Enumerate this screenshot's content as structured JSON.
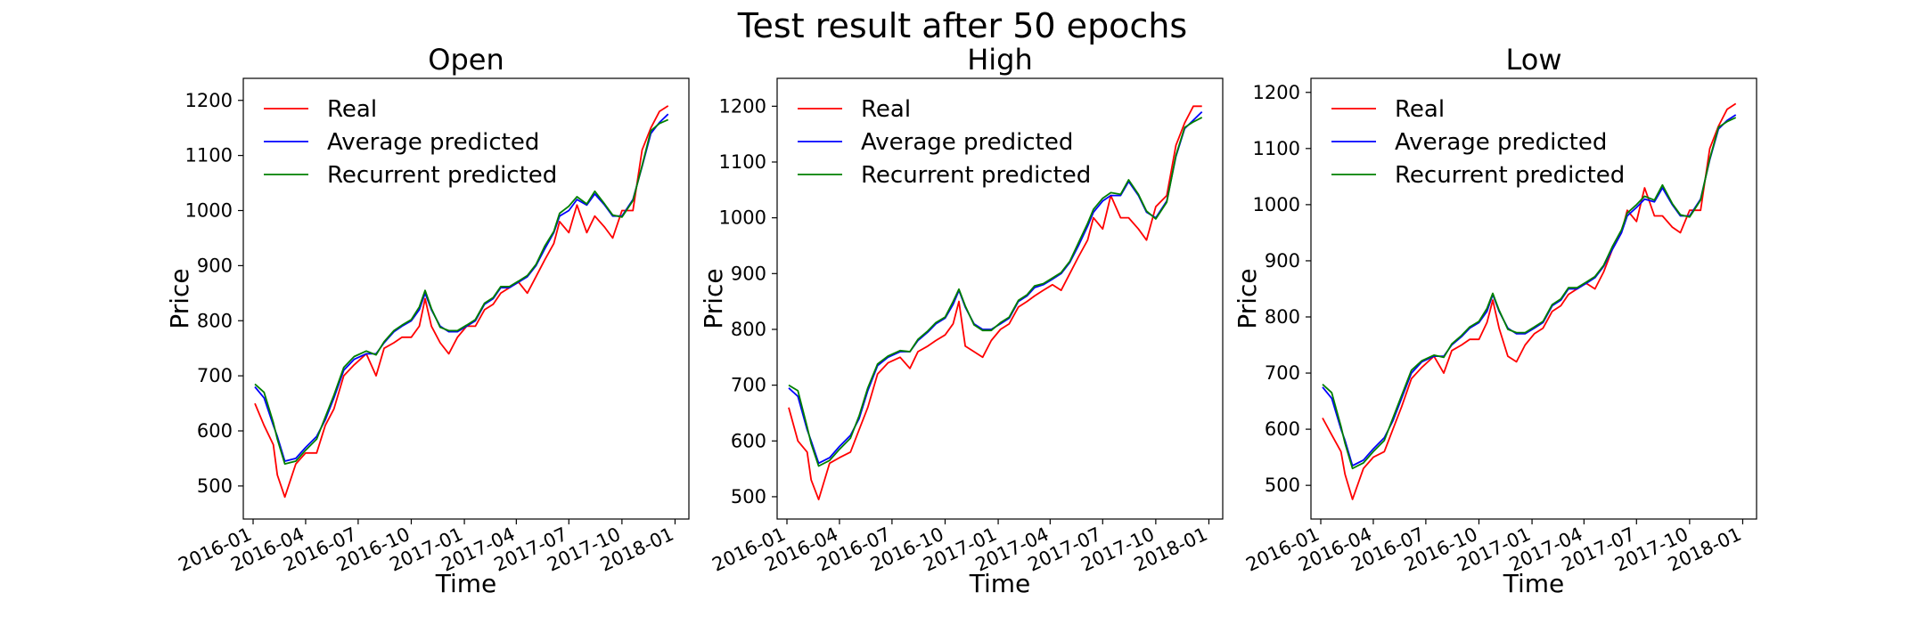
{
  "title": "Test result after 50 epochs",
  "legend": [
    {
      "label": "Real",
      "color": "#ff0000"
    },
    {
      "label": "Average predicted",
      "color": "#0000ff"
    },
    {
      "label": "Recurrent predicted",
      "color": "#008000"
    }
  ],
  "chart_data": [
    {
      "type": "line",
      "title": "Open",
      "xlabel": "Time",
      "ylabel": "Price",
      "x_ticks": [
        "2016-01",
        "2016-04",
        "2016-07",
        "2016-10",
        "2017-01",
        "2017-04",
        "2017-07",
        "2017-10",
        "2018-01"
      ],
      "y_ticks": [
        500,
        600,
        700,
        800,
        900,
        1000,
        1100,
        1200
      ],
      "ylim": [
        440,
        1240
      ],
      "grid": false,
      "legend_position": "top-left",
      "x": [
        "2016-01-04",
        "2016-01-20",
        "2016-02-05",
        "2016-02-12",
        "2016-02-25",
        "2016-03-15",
        "2016-04-01",
        "2016-04-20",
        "2016-05-05",
        "2016-05-20",
        "2016-06-06",
        "2016-06-24",
        "2016-07-15",
        "2016-08-01",
        "2016-08-15",
        "2016-09-01",
        "2016-09-15",
        "2016-10-01",
        "2016-10-15",
        "2016-10-25",
        "2016-11-05",
        "2016-11-20",
        "2016-12-05",
        "2016-12-20",
        "2017-01-05",
        "2017-01-20",
        "2017-02-05",
        "2017-02-20",
        "2017-03-05",
        "2017-03-20",
        "2017-04-05",
        "2017-04-20",
        "2017-05-05",
        "2017-05-20",
        "2017-06-05",
        "2017-06-15",
        "2017-07-01",
        "2017-07-15",
        "2017-08-01",
        "2017-08-15",
        "2017-09-01",
        "2017-09-15",
        "2017-10-01",
        "2017-10-20",
        "2017-11-05",
        "2017-11-20",
        "2017-12-05",
        "2017-12-20"
      ],
      "series": [
        {
          "name": "Real",
          "color": "#ff0000",
          "values": [
            650,
            610,
            575,
            520,
            480,
            540,
            560,
            560,
            610,
            640,
            700,
            720,
            740,
            700,
            750,
            760,
            770,
            770,
            790,
            840,
            790,
            760,
            740,
            770,
            790,
            790,
            820,
            830,
            850,
            860,
            870,
            850,
            880,
            910,
            940,
            980,
            960,
            1010,
            960,
            990,
            970,
            950,
            1000,
            1000,
            1110,
            1150,
            1180,
            1190
          ]
        },
        {
          "name": "Average predicted",
          "color": "#0000ff",
          "values": [
            680,
            660,
            610,
            590,
            545,
            550,
            570,
            590,
            620,
            660,
            710,
            730,
            740,
            740,
            760,
            780,
            790,
            800,
            820,
            850,
            820,
            790,
            780,
            780,
            790,
            800,
            830,
            840,
            860,
            860,
            870,
            880,
            900,
            930,
            960,
            990,
            1000,
            1020,
            1010,
            1030,
            1010,
            990,
            990,
            1020,
            1080,
            1140,
            1160,
            1175
          ]
        },
        {
          "name": "Recurrent predicted",
          "color": "#008000",
          "values": [
            685,
            670,
            615,
            585,
            540,
            545,
            565,
            585,
            625,
            665,
            715,
            735,
            745,
            738,
            762,
            782,
            792,
            802,
            825,
            855,
            822,
            788,
            782,
            782,
            792,
            802,
            832,
            842,
            862,
            862,
            872,
            882,
            902,
            935,
            962,
            995,
            1008,
            1025,
            1012,
            1035,
            1012,
            992,
            988,
            1018,
            1082,
            1145,
            1158,
            1165
          ]
        }
      ]
    },
    {
      "type": "line",
      "title": "High",
      "xlabel": "Time",
      "ylabel": "Price",
      "x_ticks": [
        "2016-01",
        "2016-04",
        "2016-07",
        "2016-10",
        "2017-01",
        "2017-04",
        "2017-07",
        "2017-10",
        "2018-01"
      ],
      "y_ticks": [
        500,
        600,
        700,
        800,
        900,
        1000,
        1100,
        1200
      ],
      "ylim": [
        460,
        1250
      ],
      "grid": false,
      "legend_position": "top-left",
      "x": [
        "2016-01-04",
        "2016-01-20",
        "2016-02-05",
        "2016-02-12",
        "2016-02-25",
        "2016-03-15",
        "2016-04-01",
        "2016-04-20",
        "2016-05-05",
        "2016-05-20",
        "2016-06-06",
        "2016-06-24",
        "2016-07-15",
        "2016-08-01",
        "2016-08-15",
        "2016-09-01",
        "2016-09-15",
        "2016-10-01",
        "2016-10-15",
        "2016-10-25",
        "2016-11-05",
        "2016-11-20",
        "2016-12-05",
        "2016-12-20",
        "2017-01-05",
        "2017-01-20",
        "2017-02-05",
        "2017-02-20",
        "2017-03-05",
        "2017-03-20",
        "2017-04-05",
        "2017-04-20",
        "2017-05-05",
        "2017-05-20",
        "2017-06-05",
        "2017-06-15",
        "2017-07-01",
        "2017-07-15",
        "2017-08-01",
        "2017-08-15",
        "2017-09-01",
        "2017-09-15",
        "2017-10-01",
        "2017-10-20",
        "2017-11-05",
        "2017-11-20",
        "2017-12-05",
        "2017-12-20"
      ],
      "series": [
        {
          "name": "Real",
          "color": "#ff0000",
          "values": [
            660,
            600,
            580,
            530,
            495,
            560,
            570,
            580,
            620,
            660,
            720,
            740,
            750,
            730,
            760,
            770,
            780,
            790,
            810,
            850,
            770,
            760,
            750,
            780,
            800,
            810,
            840,
            850,
            860,
            870,
            880,
            870,
            900,
            930,
            960,
            1000,
            980,
            1040,
            1000,
            1000,
            980,
            960,
            1020,
            1040,
            1130,
            1170,
            1200,
            1200
          ]
        },
        {
          "name": "Average predicted",
          "color": "#0000ff",
          "values": [
            695,
            680,
            620,
            600,
            560,
            570,
            590,
            610,
            640,
            690,
            735,
            750,
            760,
            760,
            780,
            795,
            810,
            820,
            845,
            870,
            840,
            810,
            800,
            800,
            810,
            820,
            850,
            860,
            875,
            880,
            890,
            900,
            920,
            950,
            985,
            1010,
            1030,
            1040,
            1040,
            1065,
            1040,
            1010,
            1000,
            1030,
            1110,
            1160,
            1175,
            1190
          ]
        },
        {
          "name": "Recurrent predicted",
          "color": "#008000",
          "values": [
            700,
            690,
            625,
            595,
            555,
            565,
            585,
            605,
            645,
            695,
            738,
            752,
            762,
            760,
            782,
            797,
            812,
            822,
            850,
            872,
            842,
            808,
            798,
            798,
            812,
            822,
            852,
            862,
            878,
            882,
            892,
            902,
            922,
            955,
            990,
            1015,
            1035,
            1045,
            1042,
            1068,
            1042,
            1012,
            998,
            1028,
            1112,
            1162,
            1172,
            1180
          ]
        }
      ]
    },
    {
      "type": "line",
      "title": "Low",
      "xlabel": "Time",
      "ylabel": "Price",
      "x_ticks": [
        "2016-01",
        "2016-04",
        "2016-07",
        "2016-10",
        "2017-01",
        "2017-04",
        "2017-07",
        "2017-10",
        "2018-01"
      ],
      "y_ticks": [
        500,
        600,
        700,
        800,
        900,
        1000,
        1100,
        1200
      ],
      "ylim": [
        440,
        1225
      ],
      "grid": false,
      "legend_position": "top-left",
      "x": [
        "2016-01-04",
        "2016-01-20",
        "2016-02-05",
        "2016-02-12",
        "2016-02-25",
        "2016-03-15",
        "2016-04-01",
        "2016-04-20",
        "2016-05-05",
        "2016-05-20",
        "2016-06-06",
        "2016-06-24",
        "2016-07-15",
        "2016-08-01",
        "2016-08-15",
        "2016-09-01",
        "2016-09-15",
        "2016-10-01",
        "2016-10-15",
        "2016-10-25",
        "2016-11-05",
        "2016-11-20",
        "2016-12-05",
        "2016-12-20",
        "2017-01-05",
        "2017-01-20",
        "2017-02-05",
        "2017-02-20",
        "2017-03-05",
        "2017-03-20",
        "2017-04-05",
        "2017-04-20",
        "2017-05-05",
        "2017-05-20",
        "2017-06-05",
        "2017-06-15",
        "2017-07-01",
        "2017-07-15",
        "2017-08-01",
        "2017-08-15",
        "2017-09-01",
        "2017-09-15",
        "2017-10-01",
        "2017-10-20",
        "2017-11-05",
        "2017-11-20",
        "2017-12-05",
        "2017-12-20"
      ],
      "series": [
        {
          "name": "Real",
          "color": "#ff0000",
          "values": [
            620,
            590,
            560,
            520,
            475,
            530,
            550,
            560,
            600,
            640,
            690,
            710,
            730,
            700,
            740,
            750,
            760,
            760,
            790,
            830,
            780,
            730,
            720,
            750,
            770,
            780,
            810,
            820,
            840,
            850,
            860,
            850,
            880,
            920,
            950,
            990,
            970,
            1030,
            980,
            980,
            960,
            950,
            990,
            990,
            1100,
            1140,
            1170,
            1180
          ]
        },
        {
          "name": "Average predicted",
          "color": "#0000ff",
          "values": [
            675,
            655,
            600,
            580,
            535,
            545,
            565,
            585,
            615,
            655,
            700,
            720,
            730,
            730,
            750,
            765,
            780,
            790,
            810,
            840,
            810,
            780,
            770,
            770,
            780,
            790,
            820,
            830,
            850,
            850,
            860,
            870,
            890,
            920,
            950,
            980,
            995,
            1010,
            1005,
            1030,
            1000,
            980,
            980,
            1010,
            1080,
            1135,
            1150,
            1160
          ]
        },
        {
          "name": "Recurrent predicted",
          "color": "#008000",
          "values": [
            680,
            665,
            605,
            575,
            530,
            540,
            560,
            580,
            620,
            660,
            705,
            722,
            732,
            728,
            752,
            767,
            782,
            792,
            815,
            842,
            812,
            778,
            772,
            772,
            782,
            792,
            822,
            832,
            852,
            852,
            862,
            872,
            892,
            925,
            955,
            985,
            1000,
            1015,
            1008,
            1035,
            1002,
            982,
            978,
            1008,
            1082,
            1138,
            1148,
            1155
          ]
        }
      ]
    }
  ]
}
